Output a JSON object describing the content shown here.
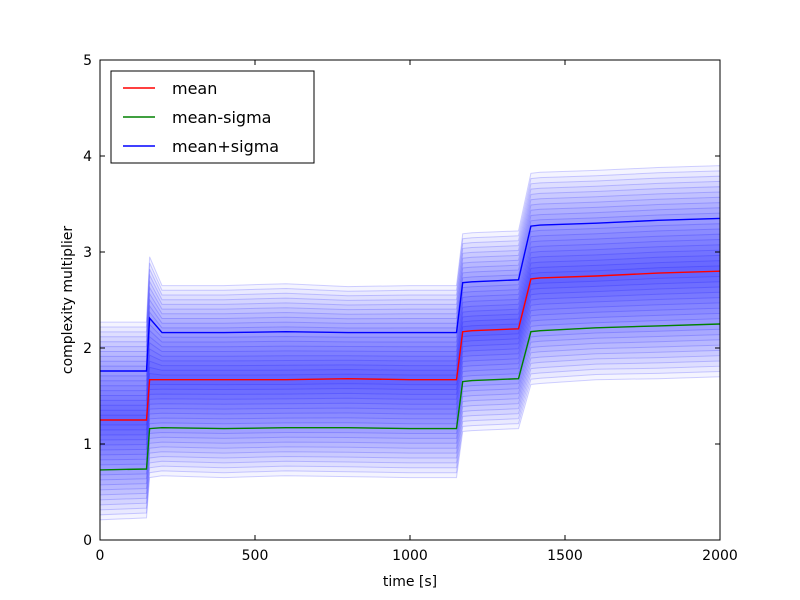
{
  "chart_data": {
    "type": "line",
    "title": "",
    "xlabel": "time [s]",
    "ylabel": "complexity multiplier",
    "xlim": [
      0,
      2000
    ],
    "ylim": [
      0,
      5
    ],
    "xticks": [
      0,
      500,
      1000,
      1500,
      2000
    ],
    "yticks": [
      0,
      1,
      2,
      3,
      4,
      5
    ],
    "grid": false,
    "legend": "top-left",
    "colors": {
      "mean": "#ff0000",
      "mean-sigma": "#008000",
      "mean+sigma": "#0000ff",
      "band": "#0000ff"
    },
    "x": [
      0,
      150,
      160,
      200,
      400,
      600,
      800,
      1000,
      1150,
      1170,
      1200,
      1350,
      1390,
      1420,
      1600,
      1800,
      2000
    ],
    "series": [
      {
        "name": "mean",
        "values": [
          1.25,
          1.25,
          1.67,
          1.67,
          1.67,
          1.67,
          1.68,
          1.67,
          1.67,
          2.17,
          2.18,
          2.2,
          2.72,
          2.73,
          2.75,
          2.78,
          2.8
        ]
      },
      {
        "name": "mean-sigma",
        "values": [
          0.73,
          0.74,
          1.16,
          1.17,
          1.16,
          1.17,
          1.17,
          1.16,
          1.16,
          1.65,
          1.66,
          1.68,
          2.17,
          2.18,
          2.21,
          2.23,
          2.25
        ]
      },
      {
        "name": "mean+sigma",
        "values": [
          1.76,
          1.76,
          2.31,
          2.16,
          2.16,
          2.17,
          2.16,
          2.16,
          2.16,
          2.68,
          2.69,
          2.71,
          3.27,
          3.28,
          3.3,
          3.33,
          3.35
        ]
      }
    ]
  }
}
